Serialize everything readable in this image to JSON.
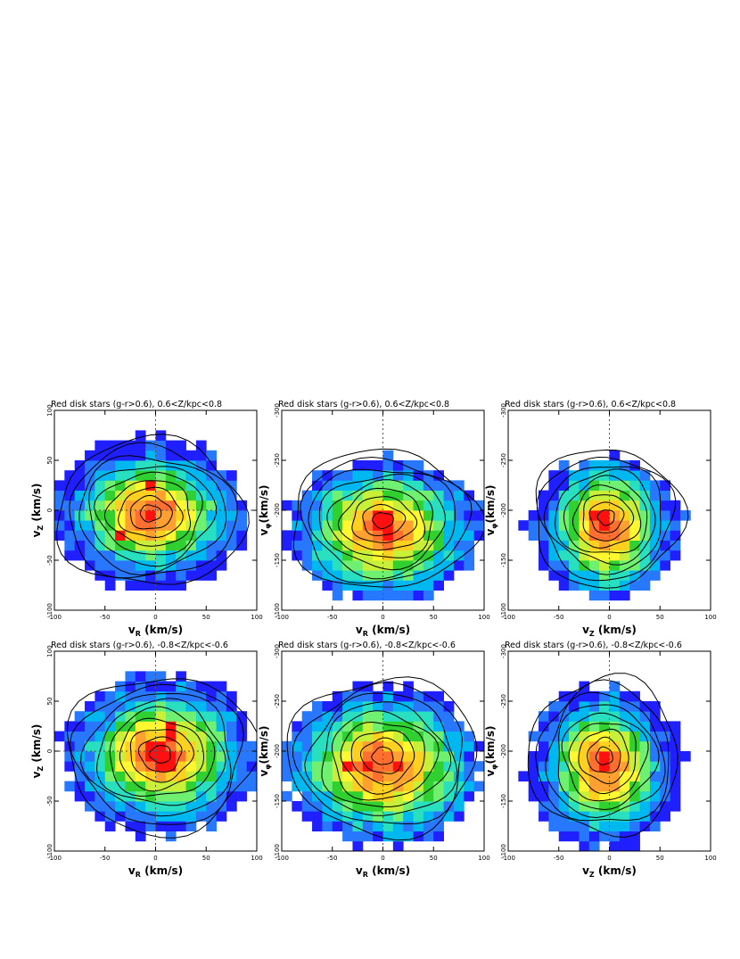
{
  "chart_data": [
    {
      "type": "heatmap",
      "title": "Red disk stars (g-r>0.6), 0.6<Z/kpc<0.8",
      "xlabel": {
        "main": "v",
        "sub": "R",
        "unit": " (km/s)"
      },
      "ylabel": {
        "main": "v",
        "sub": "Z",
        "unit": " (km/s)"
      },
      "xlim": [
        -100,
        100
      ],
      "ylim": [
        -100,
        100
      ],
      "y_inverted": false,
      "xticks": [
        "-100",
        "-50",
        "0",
        "50",
        "100"
      ],
      "yticks": [
        "-100",
        "-50",
        "0",
        "50",
        "100"
      ],
      "grid_n": 20,
      "peak": {
        "x": -5,
        "y": -3
      },
      "sigma": {
        "x": 40,
        "y": 30
      },
      "outer_extent": {
        "x": 97,
        "y": 77
      },
      "hotspots": [
        {
          "x": -5,
          "y": -5
        },
        {
          "x": -35,
          "y": -25
        },
        {
          "x": -5,
          "y": 25
        }
      ],
      "contour_levels": 9,
      "reference_lines": {
        "x": 0,
        "y": 0
      }
    },
    {
      "type": "heatmap",
      "title": "Red disk stars (g-r>0.6), 0.6<Z/kpc<0.8",
      "xlabel": {
        "main": "v",
        "sub": "R",
        "unit": " (km/s)"
      },
      "ylabel": {
        "main": "v",
        "sub": "φ",
        "unit": "(km/s)"
      },
      "xlim": [
        -100,
        100
      ],
      "ylim": [
        -300,
        -100
      ],
      "y_inverted": true,
      "xticks": [
        "-100",
        "-50",
        "0",
        "50",
        "100"
      ],
      "yticks": [
        "-100",
        "-150",
        "-200",
        "-250",
        "-300"
      ],
      "grid_n": 20,
      "peak": {
        "x": 0,
        "y": -210
      },
      "sigma": {
        "x": 42,
        "y": 32
      },
      "outer_extent": {
        "x": 97,
        "y": 72
      },
      "hotspots": [
        {
          "x": 5,
          "y": -215
        },
        {
          "x": 0,
          "y": -200
        }
      ],
      "contour_levels": 9,
      "reference_lines": {
        "x": 0,
        "y": null
      }
    },
    {
      "type": "heatmap",
      "title": "Red disk stars (g-r>0.6), 0.6<Z/kpc<0.8",
      "xlabel": {
        "main": "v",
        "sub": "Z",
        "unit": " (km/s)"
      },
      "ylabel": {
        "main": "v",
        "sub": "φ",
        "unit": "(km/s)"
      },
      "xlim": [
        -100,
        100
      ],
      "ylim": [
        -300,
        -100
      ],
      "y_inverted": true,
      "xticks": [
        "-100",
        "-50",
        "0",
        "50",
        "100"
      ],
      "yticks": [
        "-100",
        "-150",
        "-200",
        "-250",
        "-300"
      ],
      "grid_n": 20,
      "peak": {
        "x": -3,
        "y": -207
      },
      "sigma": {
        "x": 30,
        "y": 33
      },
      "outer_extent": {
        "x": 77,
        "y": 72
      },
      "hotspots": [
        {
          "x": -5,
          "y": -205
        },
        {
          "x": -10,
          "y": -195
        }
      ],
      "contour_levels": 9,
      "reference_lines": {
        "x": 0,
        "y": null
      }
    },
    {
      "type": "heatmap",
      "title": "Red disk stars (g-r>0.6), -0.8<Z/kpc<-0.6",
      "xlabel": {
        "main": "v",
        "sub": "R",
        "unit": " (km/s)"
      },
      "ylabel": {
        "main": "v",
        "sub": "Z",
        "unit": " (km/s)"
      },
      "xlim": [
        -100,
        100
      ],
      "ylim": [
        -100,
        100
      ],
      "y_inverted": false,
      "xticks": [
        "-100",
        "-50",
        "0",
        "50",
        "100"
      ],
      "yticks": [
        "-100",
        "-50",
        "0",
        "50",
        "100"
      ],
      "grid_n": 20,
      "peak": {
        "x": 5,
        "y": -3
      },
      "sigma": {
        "x": 42,
        "y": 33
      },
      "outer_extent": {
        "x": 97,
        "y": 82
      },
      "hotspots": [
        {
          "x": 10,
          "y": -10
        },
        {
          "x": 15,
          "y": 20
        },
        {
          "x": 0,
          "y": 0
        }
      ],
      "contour_levels": 9,
      "reference_lines": {
        "x": 0,
        "y": 0
      }
    },
    {
      "type": "heatmap",
      "title": "Red disk stars (g-r>0.6), -0.8<Z/kpc<-0.6",
      "xlabel": {
        "main": "v",
        "sub": "R",
        "unit": " (km/s)"
      },
      "ylabel": {
        "main": "v",
        "sub": "φ",
        "unit": "(km/s)"
      },
      "xlim": [
        -100,
        100
      ],
      "ylim": [
        -300,
        -100
      ],
      "y_inverted": true,
      "xticks": [
        "-100",
        "-50",
        "0",
        "50",
        "100"
      ],
      "yticks": [
        "-100",
        "-150",
        "-200",
        "-250",
        "-300"
      ],
      "grid_n": 20,
      "peak": {
        "x": 0,
        "y": -205
      },
      "sigma": {
        "x": 45,
        "y": 35
      },
      "outer_extent": {
        "x": 97,
        "y": 82
      },
      "hotspots": [
        {
          "x": -35,
          "y": -205
        },
        {
          "x": -15,
          "y": -205
        },
        {
          "x": 15,
          "y": -205
        }
      ],
      "contour_levels": 9,
      "reference_lines": {
        "x": 0,
        "y": null
      }
    },
    {
      "type": "heatmap",
      "title": "Red disk stars (g-r>0.6), -0.8<Z/kpc<-0.6",
      "xlabel": {
        "main": "v",
        "sub": "Z",
        "unit": " (km/s)"
      },
      "ylabel": {
        "main": "v",
        "sub": "φ",
        "unit": "(km/s)"
      },
      "xlim": [
        -100,
        100
      ],
      "ylim": [
        -300,
        -100
      ],
      "y_inverted": true,
      "xticks": [
        "-100",
        "-50",
        "0",
        "50",
        "100"
      ],
      "yticks": [
        "-100",
        "-150",
        "-200",
        "-250",
        "-300"
      ],
      "grid_n": 20,
      "peak": {
        "x": -5,
        "y": -205
      },
      "sigma": {
        "x": 30,
        "y": 35
      },
      "outer_extent": {
        "x": 77,
        "y": 82
      },
      "hotspots": [
        {
          "x": -5,
          "y": -205
        },
        {
          "x": -5,
          "y": -195
        }
      ],
      "contour_levels": 9,
      "reference_lines": {
        "x": 0,
        "y": null
      }
    }
  ],
  "colors": {
    "scale": [
      "#1f1fff",
      "#2878ff",
      "#00b8f0",
      "#28e0c0",
      "#70f070",
      "#30d030",
      "#c8f038",
      "#fff830",
      "#ffd020",
      "#ffa030",
      "#ff7030",
      "#ff1010"
    ],
    "contour": "#000000",
    "reference_line": "#555555"
  }
}
